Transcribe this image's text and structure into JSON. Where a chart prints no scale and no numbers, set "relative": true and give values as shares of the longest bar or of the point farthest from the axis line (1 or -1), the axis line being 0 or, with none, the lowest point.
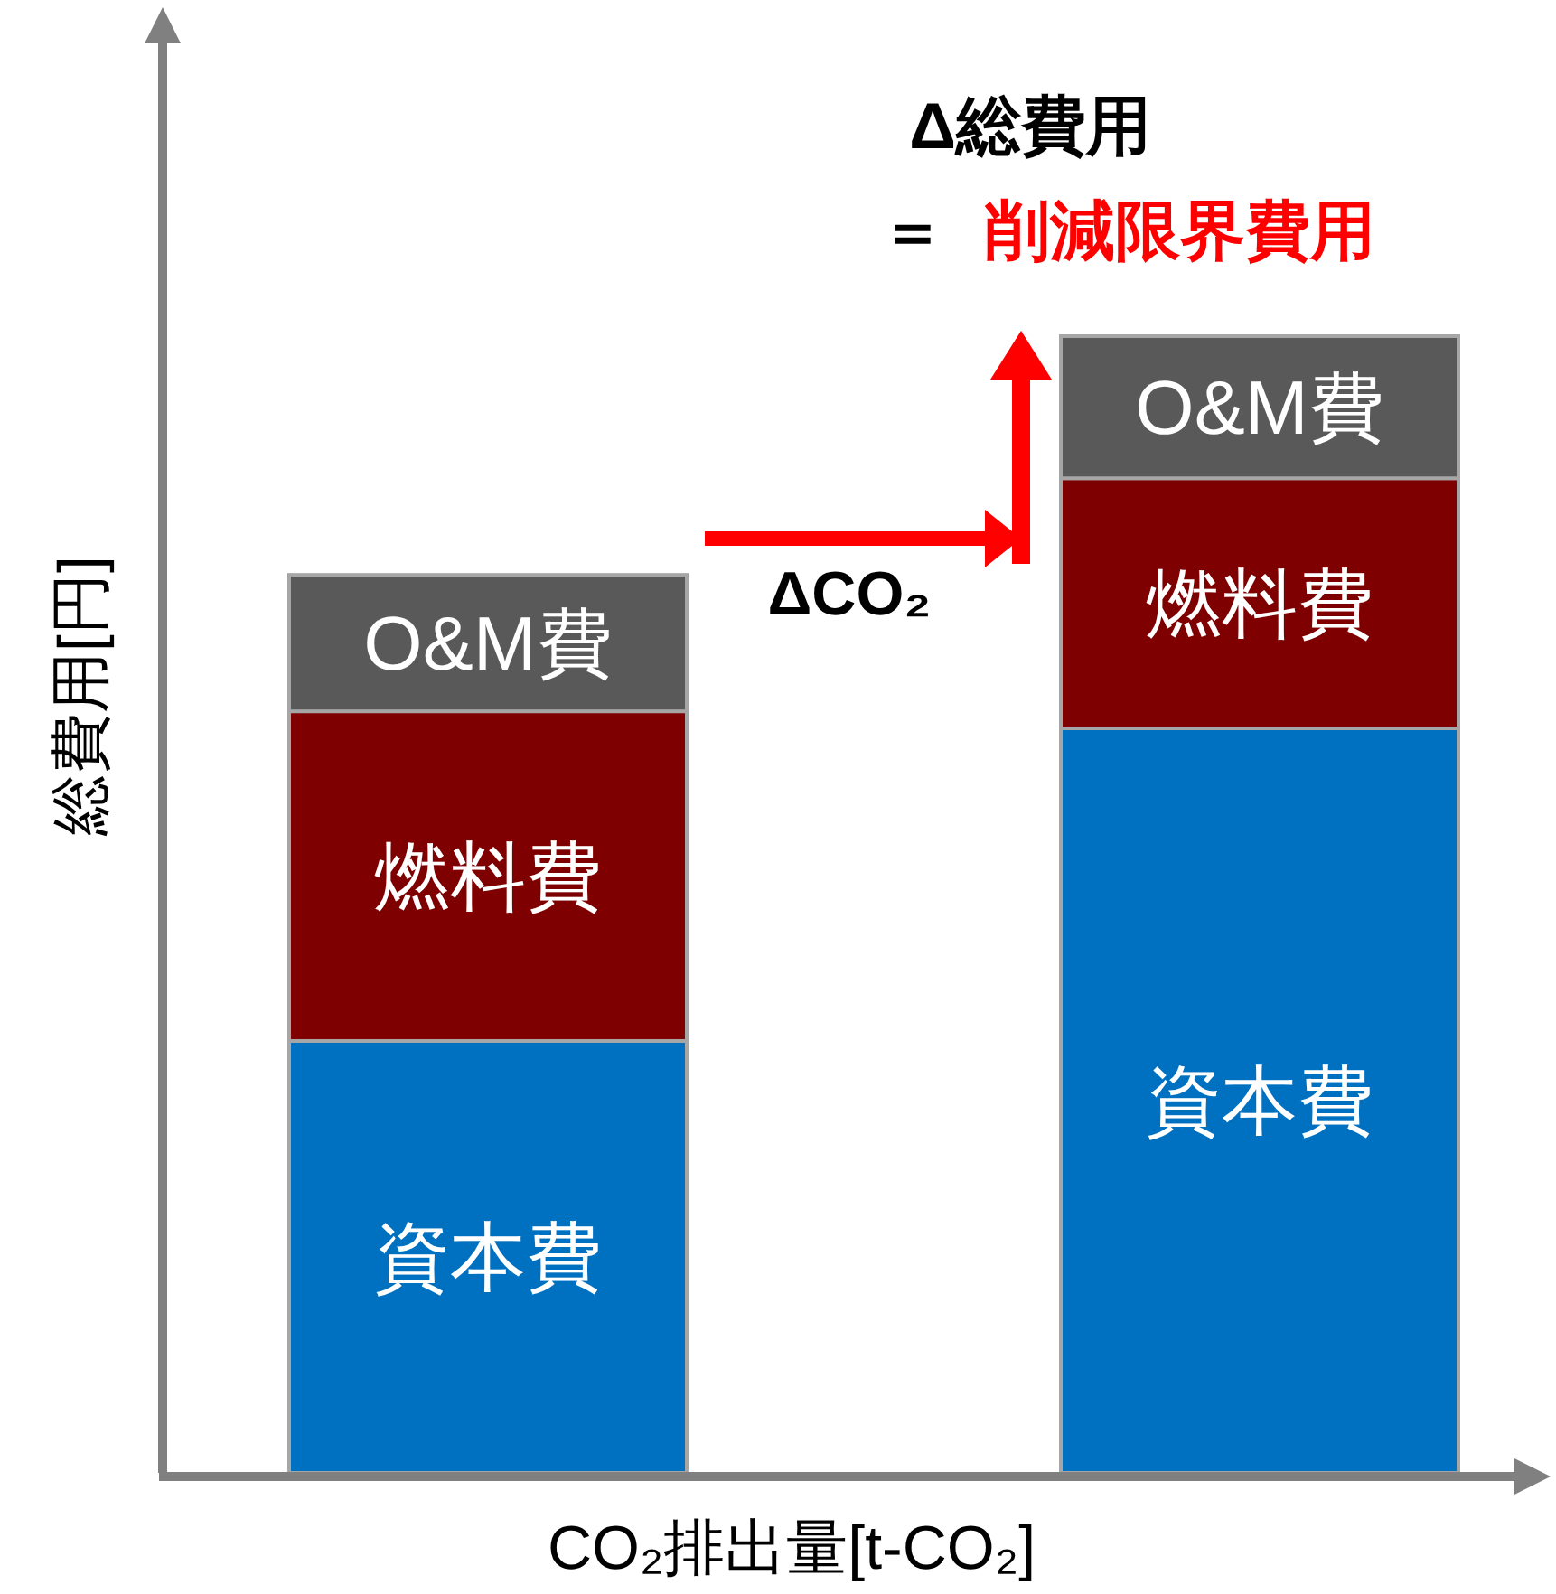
{
  "chart_data": {
    "type": "bar",
    "stacked": true,
    "relative": true,
    "categories": [
      null,
      null
    ],
    "xlabel": "CO₂排出量[t-CO₂]",
    "ylabel": "総費用[円]",
    "series": [
      {
        "name": "資本費",
        "color": "#0070c0",
        "values": [
          0.38,
          0.655
        ]
      },
      {
        "name": "燃料費",
        "color": "#7f0000",
        "values": [
          0.29,
          0.22
        ]
      },
      {
        "name": "O&M費",
        "color": "#595959",
        "values": [
          0.12,
          0.125
        ]
      }
    ],
    "annotations": [
      "ΔCO₂",
      "Δ総費用",
      "＝",
      "削減限界費用"
    ]
  }
}
